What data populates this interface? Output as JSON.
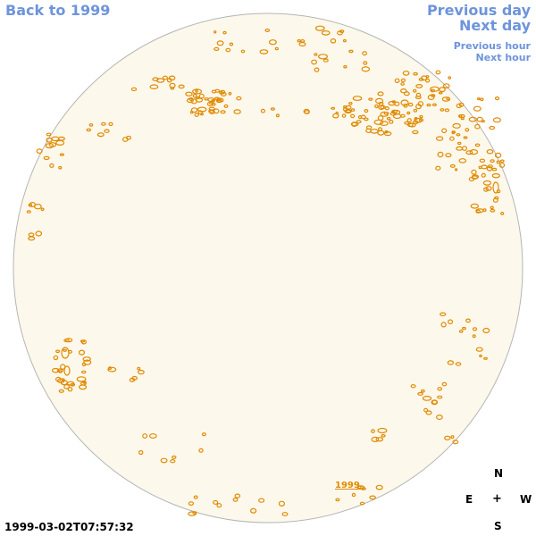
{
  "nav": {
    "back_label": "Back to 1999",
    "previous_day_label": "Previous day",
    "next_day_label": "Next day",
    "previous_hour_label": "Previous hour",
    "next_hour_label": "Next hour"
  },
  "compass": {
    "north": "N",
    "east": "E",
    "center": "+",
    "west": "W",
    "south": "S"
  },
  "timestamp": "1999-03-02T07:57:32",
  "region_label": "1999",
  "colors": {
    "disk_fill": "#fdf8ec",
    "disk_edge": "#b5b5b5",
    "contour": "#e08a00",
    "link": "#6d94dc"
  },
  "icons": [
    "solar-disk-icon",
    "compass-icon"
  ]
}
